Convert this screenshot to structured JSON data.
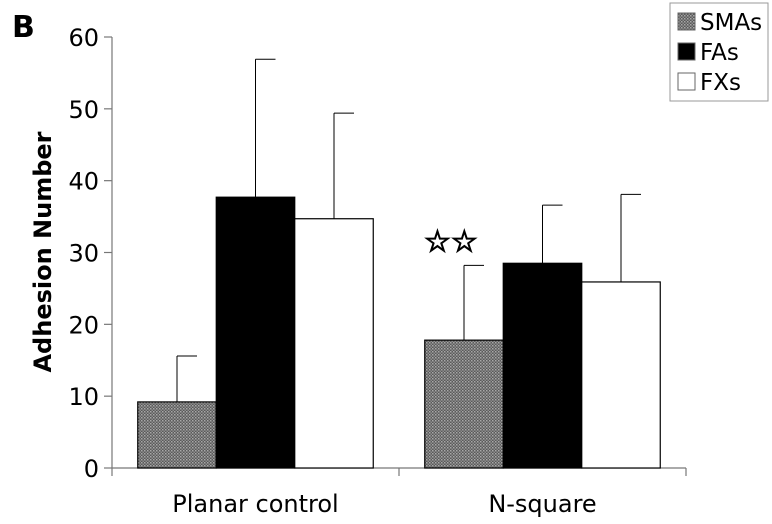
{
  "panel_label": "B",
  "chart_data": {
    "type": "bar",
    "title": "",
    "xlabel": "",
    "ylabel": "Adhesion Number",
    "ylim": [
      0,
      60
    ],
    "yticks": [
      "0",
      "10",
      "20",
      "30",
      "40",
      "50",
      "60"
    ],
    "categories": [
      "Planar control",
      "N-square"
    ],
    "series": [
      {
        "name": "SMAs",
        "values": [
          9.2,
          17.8
        ],
        "errors": [
          6.4,
          10.4
        ],
        "color": "#6e6e6e",
        "pattern": "hatch"
      },
      {
        "name": "FAs",
        "values": [
          37.7,
          28.5
        ],
        "errors": [
          19.2,
          8.1
        ],
        "color": "#000000",
        "pattern": "solid"
      },
      {
        "name": "FXs",
        "values": [
          34.7,
          25.9
        ],
        "errors": [
          14.7,
          12.2
        ],
        "color": "#ffffff",
        "pattern": "solid"
      }
    ],
    "annotations": [
      {
        "text": "☆☆",
        "category": "N-square",
        "series": "SMAs"
      }
    ],
    "grid": false,
    "legend_position": "top-right"
  }
}
